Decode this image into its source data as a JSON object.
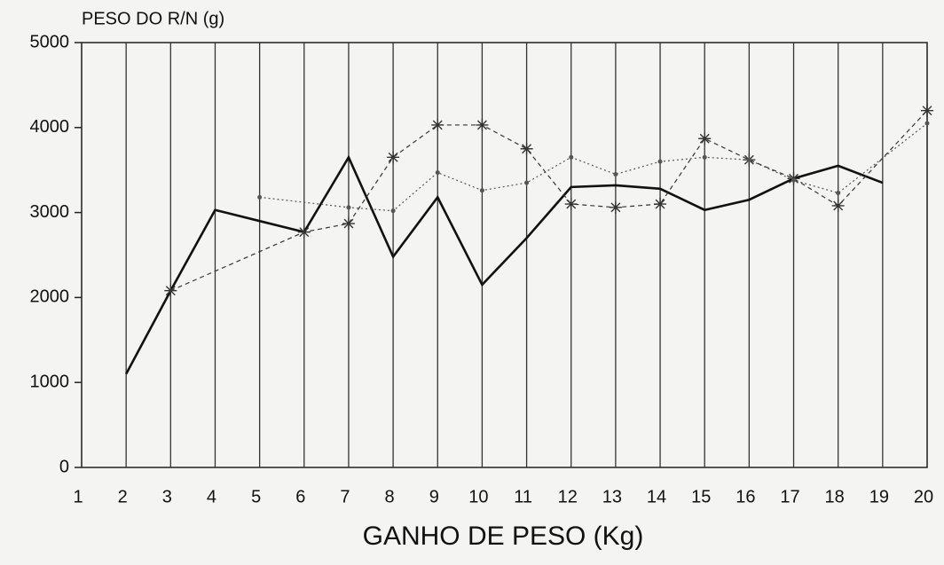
{
  "chart_data": {
    "type": "line",
    "y_label": "PESO DO R/N (g)",
    "x_label": "GANHO DE PESO (Kg)",
    "xlim": [
      1,
      20
    ],
    "xticks": [
      1,
      2,
      3,
      4,
      5,
      6,
      7,
      8,
      9,
      10,
      11,
      12,
      13,
      14,
      15,
      16,
      17,
      18,
      19,
      20
    ],
    "ylim": [
      0,
      5000
    ],
    "yticks": [
      0,
      1000,
      2000,
      3000,
      4000,
      5000
    ],
    "grid": true,
    "series": [
      {
        "color": "#111111",
        "style": "solid",
        "marker": "none",
        "x": [
          2,
          3,
          4,
          5,
          6,
          7,
          8,
          9,
          10,
          11,
          12,
          13,
          14,
          15,
          16,
          17,
          18,
          19
        ],
        "values": [
          1100,
          2080,
          3030,
          2900,
          2770,
          3650,
          2480,
          3180,
          2150,
          2700,
          3300,
          3320,
          3280,
          3030,
          3150,
          3400,
          3550,
          3350
        ]
      },
      {
        "color": "#333333",
        "style": "dashed",
        "marker": "star",
        "x": [
          3,
          6,
          7,
          8,
          9,
          10,
          11,
          12,
          13,
          14,
          15,
          16,
          17,
          18,
          20
        ],
        "values": [
          2080,
          2770,
          2870,
          3650,
          4030,
          4030,
          3750,
          3100,
          3060,
          3100,
          3870,
          3620,
          3400,
          3080,
          4200
        ]
      },
      {
        "color": "#555555",
        "style": "dotted",
        "marker": "dot",
        "x": [
          5,
          7,
          8,
          9,
          10,
          11,
          12,
          13,
          14,
          15,
          16,
          17,
          18,
          20
        ],
        "values": [
          3180,
          3060,
          3020,
          3470,
          3260,
          3350,
          3650,
          3450,
          3600,
          3650,
          3620,
          3380,
          3230,
          4050
        ]
      }
    ]
  }
}
